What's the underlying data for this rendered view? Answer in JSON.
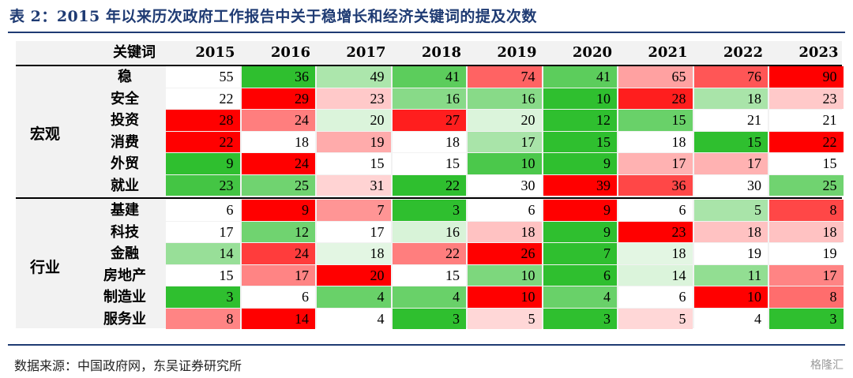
{
  "title": "表 2：2015 年以来历次政府工作报告中关于稳增长和经济关键词的提及次数",
  "source": "数据来源：中国政府网，东吴证券研究所",
  "watermark": "格隆汇",
  "chart_data": {
    "type": "heatmap",
    "title": "表 2：2015 年以来历次政府工作报告中关于稳增长和经济关键词的提及次数",
    "row_header": "关键词",
    "columns": [
      "2015",
      "2016",
      "2017",
      "2018",
      "2019",
      "2020",
      "2021",
      "2022",
      "2023"
    ],
    "groups": [
      {
        "name": "宏观",
        "rows": [
          {
            "label": "稳",
            "values": [
              55,
              36,
              49,
              41,
              74,
              41,
              65,
              76,
              90
            ]
          },
          {
            "label": "安全",
            "values": [
              22,
              29,
              23,
              16,
              16,
              10,
              28,
              18,
              23
            ]
          },
          {
            "label": "投资",
            "values": [
              28,
              24,
              20,
              27,
              20,
              12,
              15,
              21,
              21
            ]
          },
          {
            "label": "消费",
            "values": [
              22,
              18,
              19,
              18,
              17,
              15,
              18,
              15,
              22
            ]
          },
          {
            "label": "外贸",
            "values": [
              9,
              24,
              15,
              15,
              10,
              9,
              17,
              17,
              15
            ]
          },
          {
            "label": "就业",
            "values": [
              23,
              25,
              31,
              22,
              30,
              39,
              36,
              30,
              25
            ]
          }
        ]
      },
      {
        "name": "行业",
        "rows": [
          {
            "label": "基建",
            "values": [
              6,
              9,
              7,
              3,
              6,
              9,
              6,
              5,
              8
            ]
          },
          {
            "label": "科技",
            "values": [
              17,
              12,
              17,
              16,
              18,
              9,
              23,
              18,
              18
            ]
          },
          {
            "label": "金融",
            "values": [
              14,
              24,
              18,
              22,
              26,
              7,
              18,
              19,
              19
            ]
          },
          {
            "label": "房地产",
            "values": [
              15,
              17,
              20,
              15,
              10,
              6,
              14,
              11,
              17
            ]
          },
          {
            "label": "制造业",
            "values": [
              3,
              6,
              4,
              4,
              10,
              4,
              6,
              10,
              8
            ]
          },
          {
            "label": "服务业",
            "values": [
              8,
              14,
              4,
              3,
              5,
              3,
              5,
              4,
              3
            ]
          }
        ]
      }
    ],
    "colors": {
      "high": "#ff0000",
      "mid": "#ffffff",
      "low": "#2fbf2f"
    }
  }
}
